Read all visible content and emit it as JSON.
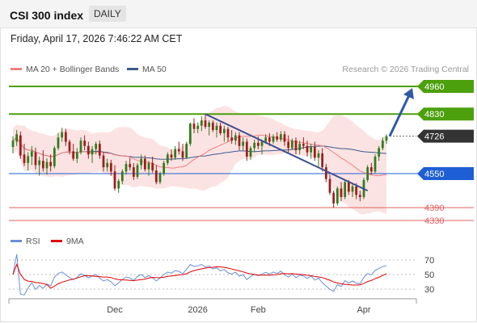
{
  "header": {
    "title": "CSI 300 index",
    "period": "DAILY"
  },
  "timestamp": "Friday, April 17, 2026 7:46:22 AM CET",
  "credit": "Research © 2026 Trading Central",
  "legend": {
    "ma20": {
      "label": "MA 20 + Bollinger Bands",
      "color": "#f08080"
    },
    "ma50": {
      "label": "MA 50",
      "color": "#3a5a8c"
    },
    "rsi": {
      "label": "RSI",
      "color": "#6a8fd4"
    },
    "rsi_ma": {
      "label": "9MA",
      "color": "#e00000"
    }
  },
  "colors": {
    "up": "#2e7d1e",
    "down": "#a01c1c",
    "resistance": "#4ca00c",
    "pivot": "#1f5fd6",
    "support": "#e06060",
    "last": "#333333",
    "arrow": "#2f5aa8",
    "trendline": "#3b4f8f"
  },
  "chart_data": [
    {
      "type": "candlestick",
      "x_labels": [
        "Dec",
        "2026",
        "Feb",
        "Apr"
      ],
      "levels": [
        {
          "value": 4960,
          "label": "4960",
          "kind": "resistance"
        },
        {
          "value": 4830,
          "label": "4830",
          "kind": "resistance"
        },
        {
          "value": 4726,
          "label": "4726",
          "kind": "last"
        },
        {
          "value": 4550,
          "label": "4550",
          "kind": "pivot"
        },
        {
          "value": 4390,
          "label": "4390",
          "kind": "support"
        },
        {
          "value": 4330,
          "label": "4330",
          "kind": "support"
        }
      ],
      "candles": [
        {
          "o": 4675,
          "h": 4725,
          "l": 4645,
          "c": 4705
        },
        {
          "o": 4700,
          "h": 4755,
          "l": 4680,
          "c": 4735
        },
        {
          "o": 4730,
          "h": 4748,
          "l": 4620,
          "c": 4635
        },
        {
          "o": 4640,
          "h": 4690,
          "l": 4585,
          "c": 4600
        },
        {
          "o": 4600,
          "h": 4650,
          "l": 4565,
          "c": 4632
        },
        {
          "o": 4630,
          "h": 4680,
          "l": 4590,
          "c": 4655
        },
        {
          "o": 4650,
          "h": 4672,
          "l": 4570,
          "c": 4590
        },
        {
          "o": 4590,
          "h": 4630,
          "l": 4540,
          "c": 4612
        },
        {
          "o": 4610,
          "h": 4660,
          "l": 4560,
          "c": 4575
        },
        {
          "o": 4575,
          "h": 4622,
          "l": 4545,
          "c": 4605
        },
        {
          "o": 4605,
          "h": 4640,
          "l": 4560,
          "c": 4585
        },
        {
          "o": 4585,
          "h": 4680,
          "l": 4575,
          "c": 4670
        },
        {
          "o": 4670,
          "h": 4740,
          "l": 4660,
          "c": 4720
        },
        {
          "o": 4720,
          "h": 4765,
          "l": 4700,
          "c": 4745
        },
        {
          "o": 4745,
          "h": 4760,
          "l": 4680,
          "c": 4700
        },
        {
          "o": 4700,
          "h": 4710,
          "l": 4640,
          "c": 4655
        },
        {
          "o": 4655,
          "h": 4690,
          "l": 4610,
          "c": 4620
        },
        {
          "o": 4620,
          "h": 4670,
          "l": 4600,
          "c": 4650
        },
        {
          "o": 4650,
          "h": 4720,
          "l": 4640,
          "c": 4705
        },
        {
          "o": 4705,
          "h": 4730,
          "l": 4660,
          "c": 4680
        },
        {
          "o": 4680,
          "h": 4700,
          "l": 4620,
          "c": 4640
        },
        {
          "o": 4640,
          "h": 4680,
          "l": 4600,
          "c": 4665
        },
        {
          "o": 4665,
          "h": 4700,
          "l": 4640,
          "c": 4690
        },
        {
          "o": 4690,
          "h": 4705,
          "l": 4620,
          "c": 4635
        },
        {
          "o": 4635,
          "h": 4650,
          "l": 4560,
          "c": 4580
        },
        {
          "o": 4580,
          "h": 4620,
          "l": 4560,
          "c": 4600
        },
        {
          "o": 4600,
          "h": 4615,
          "l": 4540,
          "c": 4560
        },
        {
          "o": 4560,
          "h": 4590,
          "l": 4470,
          "c": 4480
        },
        {
          "o": 4480,
          "h": 4525,
          "l": 4460,
          "c": 4515
        },
        {
          "o": 4515,
          "h": 4570,
          "l": 4500,
          "c": 4560
        },
        {
          "o": 4560,
          "h": 4610,
          "l": 4545,
          "c": 4595
        },
        {
          "o": 4595,
          "h": 4625,
          "l": 4565,
          "c": 4580
        },
        {
          "o": 4580,
          "h": 4600,
          "l": 4520,
          "c": 4535
        },
        {
          "o": 4535,
          "h": 4600,
          "l": 4525,
          "c": 4590
        },
        {
          "o": 4590,
          "h": 4640,
          "l": 4570,
          "c": 4620
        },
        {
          "o": 4620,
          "h": 4635,
          "l": 4560,
          "c": 4570
        },
        {
          "o": 4570,
          "h": 4610,
          "l": 4540,
          "c": 4600
        },
        {
          "o": 4600,
          "h": 4630,
          "l": 4555,
          "c": 4565
        },
        {
          "o": 4565,
          "h": 4590,
          "l": 4500,
          "c": 4510
        },
        {
          "o": 4510,
          "h": 4560,
          "l": 4500,
          "c": 4550
        },
        {
          "o": 4550,
          "h": 4610,
          "l": 4540,
          "c": 4600
        },
        {
          "o": 4600,
          "h": 4650,
          "l": 4590,
          "c": 4640
        },
        {
          "o": 4640,
          "h": 4665,
          "l": 4610,
          "c": 4625
        },
        {
          "o": 4625,
          "h": 4680,
          "l": 4615,
          "c": 4665
        },
        {
          "o": 4665,
          "h": 4700,
          "l": 4640,
          "c": 4655
        },
        {
          "o": 4655,
          "h": 4690,
          "l": 4610,
          "c": 4625
        },
        {
          "o": 4625,
          "h": 4700,
          "l": 4620,
          "c": 4690
        },
        {
          "o": 4690,
          "h": 4790,
          "l": 4680,
          "c": 4785
        },
        {
          "o": 4785,
          "h": 4810,
          "l": 4740,
          "c": 4760
        },
        {
          "o": 4760,
          "h": 4790,
          "l": 4740,
          "c": 4775
        },
        {
          "o": 4775,
          "h": 4820,
          "l": 4750,
          "c": 4800
        },
        {
          "o": 4800,
          "h": 4830,
          "l": 4760,
          "c": 4770
        },
        {
          "o": 4770,
          "h": 4800,
          "l": 4730,
          "c": 4790
        },
        {
          "o": 4790,
          "h": 4800,
          "l": 4745,
          "c": 4755
        },
        {
          "o": 4755,
          "h": 4790,
          "l": 4720,
          "c": 4775
        },
        {
          "o": 4775,
          "h": 4790,
          "l": 4730,
          "c": 4740
        },
        {
          "o": 4740,
          "h": 4775,
          "l": 4700,
          "c": 4760
        },
        {
          "o": 4760,
          "h": 4770,
          "l": 4700,
          "c": 4720
        },
        {
          "o": 4720,
          "h": 4755,
          "l": 4690,
          "c": 4705
        },
        {
          "o": 4705,
          "h": 4745,
          "l": 4685,
          "c": 4730
        },
        {
          "o": 4730,
          "h": 4745,
          "l": 4660,
          "c": 4680
        },
        {
          "o": 4680,
          "h": 4720,
          "l": 4660,
          "c": 4700
        },
        {
          "o": 4700,
          "h": 4715,
          "l": 4610,
          "c": 4630
        },
        {
          "o": 4630,
          "h": 4680,
          "l": 4615,
          "c": 4670
        },
        {
          "o": 4670,
          "h": 4710,
          "l": 4650,
          "c": 4695
        },
        {
          "o": 4695,
          "h": 4725,
          "l": 4665,
          "c": 4680
        },
        {
          "o": 4680,
          "h": 4710,
          "l": 4640,
          "c": 4700
        },
        {
          "o": 4700,
          "h": 4735,
          "l": 4690,
          "c": 4720
        },
        {
          "o": 4720,
          "h": 4740,
          "l": 4680,
          "c": 4700
        },
        {
          "o": 4700,
          "h": 4735,
          "l": 4690,
          "c": 4725
        },
        {
          "o": 4725,
          "h": 4745,
          "l": 4700,
          "c": 4710
        },
        {
          "o": 4710,
          "h": 4750,
          "l": 4700,
          "c": 4735
        },
        {
          "o": 4735,
          "h": 4750,
          "l": 4680,
          "c": 4700
        },
        {
          "o": 4700,
          "h": 4730,
          "l": 4650,
          "c": 4670
        },
        {
          "o": 4670,
          "h": 4715,
          "l": 4660,
          "c": 4705
        },
        {
          "o": 4705,
          "h": 4720,
          "l": 4640,
          "c": 4660
        },
        {
          "o": 4660,
          "h": 4705,
          "l": 4640,
          "c": 4690
        },
        {
          "o": 4690,
          "h": 4720,
          "l": 4665,
          "c": 4680
        },
        {
          "o": 4680,
          "h": 4705,
          "l": 4630,
          "c": 4650
        },
        {
          "o": 4650,
          "h": 4690,
          "l": 4620,
          "c": 4675
        },
        {
          "o": 4675,
          "h": 4700,
          "l": 4610,
          "c": 4625
        },
        {
          "o": 4625,
          "h": 4660,
          "l": 4580,
          "c": 4645
        },
        {
          "o": 4645,
          "h": 4670,
          "l": 4560,
          "c": 4580
        },
        {
          "o": 4580,
          "h": 4595,
          "l": 4510,
          "c": 4525
        },
        {
          "o": 4525,
          "h": 4545,
          "l": 4450,
          "c": 4460
        },
        {
          "o": 4460,
          "h": 4470,
          "l": 4390,
          "c": 4410
        },
        {
          "o": 4410,
          "h": 4490,
          "l": 4400,
          "c": 4480
        },
        {
          "o": 4480,
          "h": 4510,
          "l": 4420,
          "c": 4440
        },
        {
          "o": 4440,
          "h": 4520,
          "l": 4430,
          "c": 4510
        },
        {
          "o": 4510,
          "h": 4520,
          "l": 4450,
          "c": 4465
        },
        {
          "o": 4465,
          "h": 4500,
          "l": 4440,
          "c": 4490
        },
        {
          "o": 4490,
          "h": 4505,
          "l": 4430,
          "c": 4450
        },
        {
          "o": 4450,
          "h": 4470,
          "l": 4420,
          "c": 4440
        },
        {
          "o": 4440,
          "h": 4530,
          "l": 4430,
          "c": 4520
        },
        {
          "o": 4520,
          "h": 4590,
          "l": 4510,
          "c": 4580
        },
        {
          "o": 4580,
          "h": 4600,
          "l": 4545,
          "c": 4560
        },
        {
          "o": 4560,
          "h": 4640,
          "l": 4550,
          "c": 4630
        },
        {
          "o": 4630,
          "h": 4680,
          "l": 4610,
          "c": 4670
        },
        {
          "o": 4670,
          "h": 4720,
          "l": 4660,
          "c": 4705
        },
        {
          "o": 4705,
          "h": 4735,
          "l": 4690,
          "c": 4726
        }
      ],
      "rsi_axis_ticks": [
        30,
        50,
        70
      ]
    }
  ]
}
